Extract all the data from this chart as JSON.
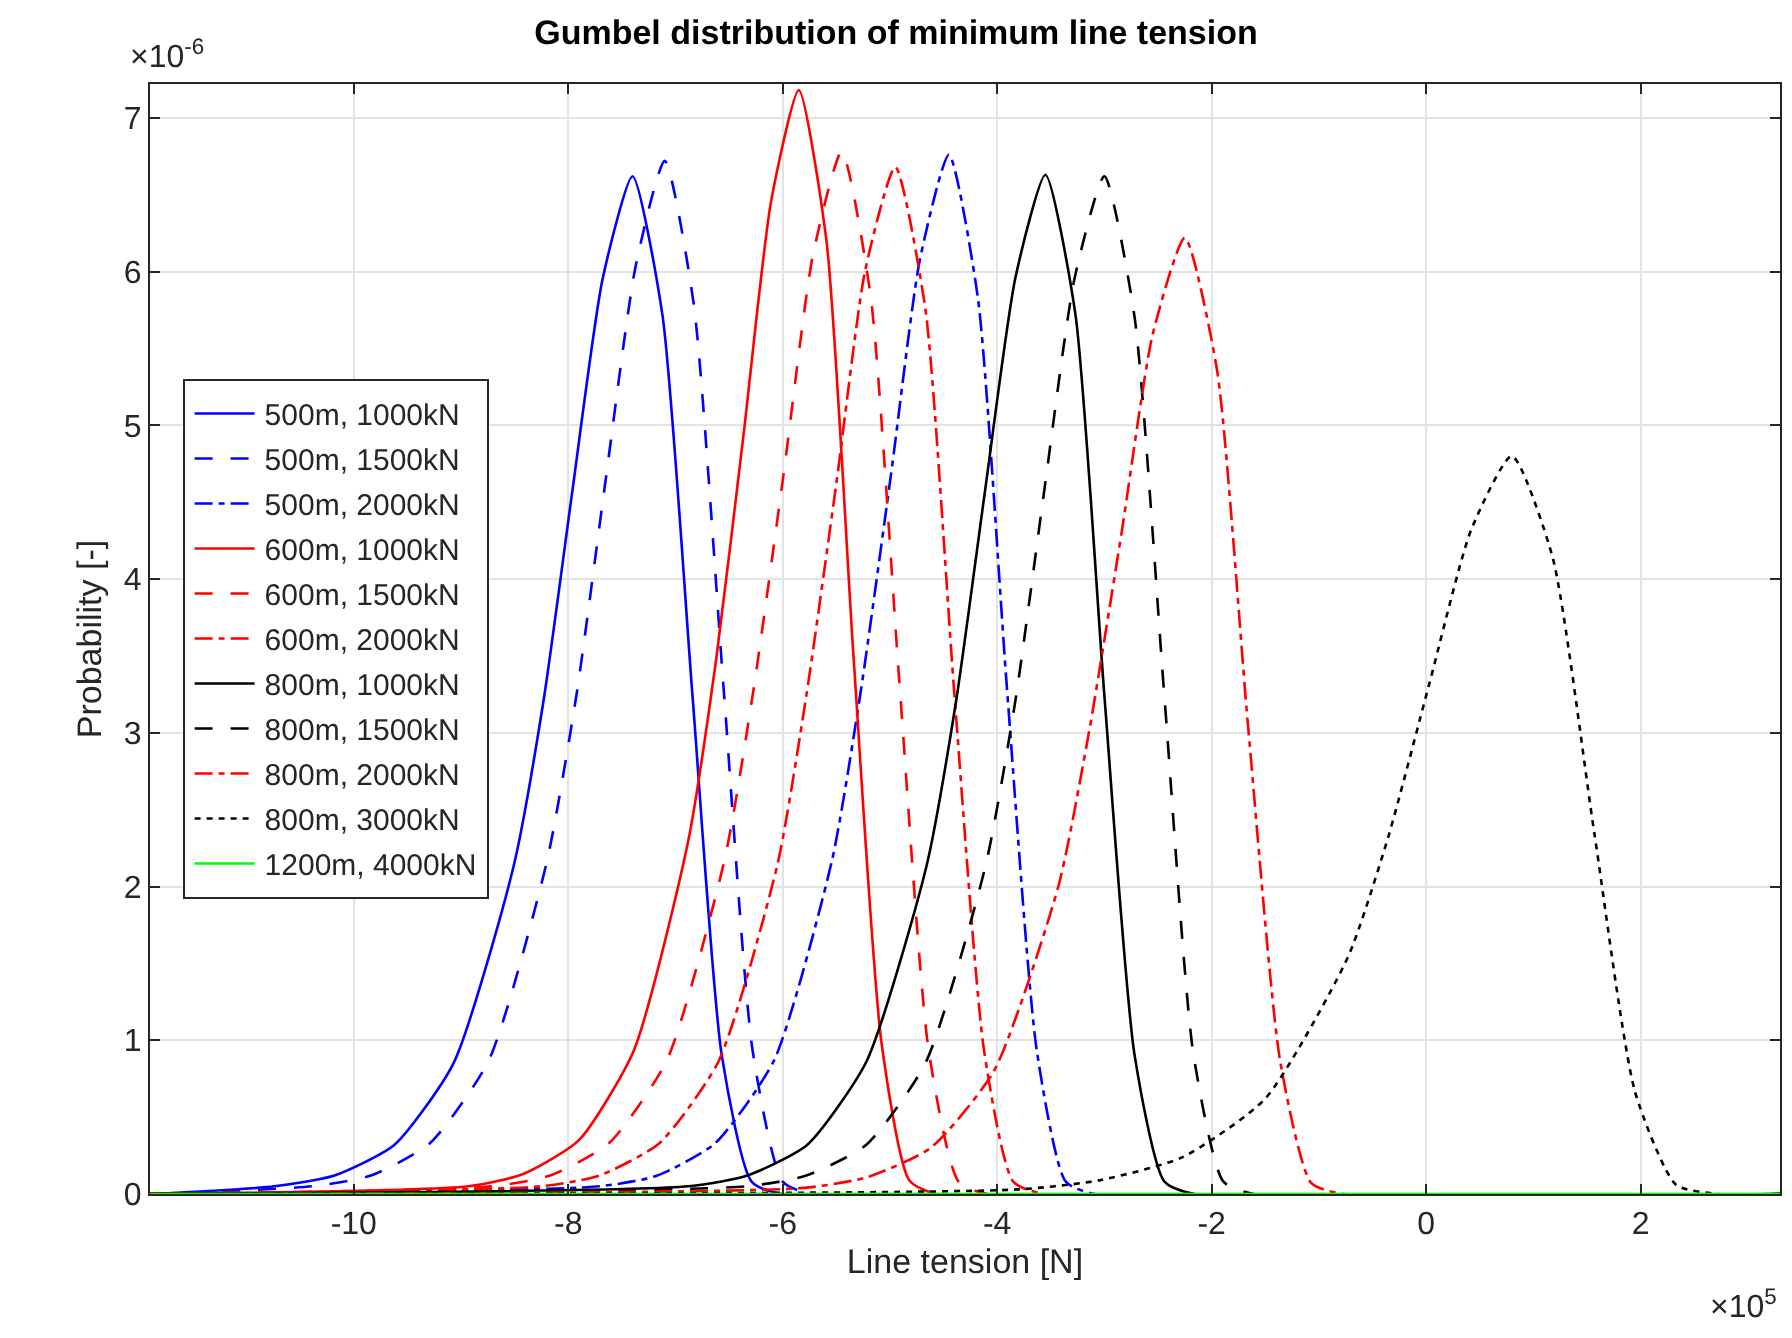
{
  "chart_data": {
    "type": "line",
    "title": "Gumbel distribution of minimum line tension",
    "xlabel": "Line tension [N]",
    "ylabel": "Probability [-]",
    "annotations": [
      "×10$^{-6}$",
      "×10$^{5}$"
    ],
    "xlim": [
      -11.9,
      3.3
    ],
    "xticks": [
      -10,
      -8,
      -6,
      -4,
      -2,
      0,
      2
    ],
    "ylim": [
      0,
      7.22
    ],
    "yticks": [
      0,
      1,
      2,
      3,
      4,
      5,
      6,
      7
    ],
    "grid": true,
    "legend": "left",
    "series": [
      {
        "name": "500m, 1000kN",
        "color": "#0000ff",
        "line_style": "solid",
        "x": [
          -11.9,
          -10.74,
          -10.18,
          -9.62,
          -9.07,
          -8.51,
          -8.23,
          -7.96,
          -7.68,
          -7.4,
          -7.12,
          -6.84,
          -6.57,
          -6.29,
          -6.01,
          3.3
        ],
        "values": [
          0,
          0.05,
          0.12,
          0.32,
          0.85,
          2.13,
          3.21,
          4.58,
          5.95,
          6.62,
          5.71,
          3.23,
          0.91,
          0.08,
          0,
          0
        ]
      },
      {
        "name": "500m, 1500kN",
        "color": "#0000ff",
        "line_style": "dashed",
        "x": [
          -11.9,
          -10.39,
          -9.84,
          -9.29,
          -8.74,
          -8.2,
          -7.92,
          -7.65,
          -7.37,
          -7.1,
          -6.83,
          -6.55,
          -6.28,
          -6.0,
          -5.73,
          3.3
        ],
        "values": [
          0,
          0.05,
          0.12,
          0.33,
          0.87,
          2.16,
          3.26,
          4.65,
          6.04,
          6.72,
          5.79,
          3.28,
          0.93,
          0.08,
          0,
          0
        ]
      },
      {
        "name": "500m, 2000kN",
        "color": "#0000ff",
        "line_style": "dashdot",
        "x": [
          -11.9,
          -7.71,
          -7.17,
          -6.63,
          -6.08,
          -5.54,
          -5.27,
          -4.99,
          -4.72,
          -4.45,
          -4.18,
          -3.91,
          -3.63,
          -3.36,
          -3.09,
          3.3
        ],
        "values": [
          0,
          0.05,
          0.12,
          0.33,
          0.87,
          2.17,
          3.28,
          4.68,
          6.08,
          6.76,
          5.83,
          3.3,
          0.93,
          0.08,
          0,
          0
        ]
      },
      {
        "name": "600m, 1000kN",
        "color": "#ff0000",
        "line_style": "solid",
        "x": [
          -11.9,
          -8.93,
          -8.42,
          -7.9,
          -7.39,
          -6.88,
          -6.62,
          -6.36,
          -6.11,
          -5.85,
          -5.59,
          -5.34,
          -5.08,
          -4.82,
          -4.57,
          3.3
        ],
        "values": [
          0,
          0.05,
          0.13,
          0.35,
          0.93,
          2.3,
          3.48,
          4.97,
          6.45,
          7.18,
          6.19,
          3.5,
          0.99,
          0.09,
          0,
          0
        ]
      },
      {
        "name": "600m, 1500kN",
        "color": "#ff0000",
        "line_style": "dashed",
        "x": [
          -11.9,
          -8.71,
          -8.17,
          -7.62,
          -7.08,
          -6.54,
          -6.27,
          -5.99,
          -5.72,
          -5.45,
          -5.18,
          -4.91,
          -4.64,
          -4.36,
          -4.09,
          3.3
        ],
        "values": [
          0,
          0.05,
          0.12,
          0.33,
          0.87,
          2.18,
          3.29,
          4.69,
          6.1,
          6.78,
          5.84,
          3.31,
          0.94,
          0.08,
          0,
          0
        ]
      },
      {
        "name": "600m, 2000kN",
        "color": "#ff0000",
        "line_style": "dashdot",
        "x": [
          -11.9,
          -8.26,
          -7.71,
          -7.15,
          -6.6,
          -6.05,
          -5.78,
          -5.5,
          -5.23,
          -4.95,
          -4.67,
          -4.4,
          -4.12,
          -3.85,
          -3.57,
          3.3
        ],
        "values": [
          0,
          0.05,
          0.12,
          0.33,
          0.86,
          2.14,
          3.24,
          4.62,
          6.01,
          6.68,
          5.76,
          3.26,
          0.92,
          0.08,
          0,
          0
        ]
      },
      {
        "name": "800m, 1000kN",
        "color": "#000000",
        "line_style": "solid",
        "x": [
          -11.9,
          -6.88,
          -6.33,
          -5.77,
          -5.22,
          -4.66,
          -4.38,
          -4.11,
          -3.83,
          -3.55,
          -3.27,
          -3.0,
          -2.72,
          -2.44,
          -2.16,
          3.3
        ],
        "values": [
          0,
          0.05,
          0.12,
          0.32,
          0.86,
          2.13,
          3.22,
          4.59,
          5.96,
          6.63,
          5.72,
          3.24,
          0.91,
          0.08,
          0,
          0
        ]
      },
      {
        "name": "800m, 1500kN",
        "color": "#000000",
        "line_style": "dashed",
        "x": [
          -11.9,
          -6.34,
          -5.78,
          -5.22,
          -4.67,
          -4.11,
          -3.83,
          -3.56,
          -3.28,
          -3.0,
          -2.72,
          -2.44,
          -2.17,
          -1.89,
          -1.61,
          3.3
        ],
        "values": [
          0,
          0.05,
          0.12,
          0.32,
          0.85,
          2.13,
          3.21,
          4.58,
          5.95,
          6.62,
          5.71,
          3.23,
          0.91,
          0.08,
          0,
          0
        ]
      },
      {
        "name": "800m, 2000kN",
        "color": "#ff0000",
        "line_style": "dashdot",
        "x": [
          -11.9,
          -5.8,
          -5.21,
          -4.62,
          -4.03,
          -3.43,
          -3.14,
          -2.84,
          -2.55,
          -2.25,
          -1.95,
          -1.66,
          -1.36,
          -1.07,
          -0.77,
          3.3
        ],
        "values": [
          0,
          0.04,
          0.11,
          0.3,
          0.8,
          2.0,
          3.02,
          4.3,
          5.59,
          6.22,
          5.36,
          3.04,
          0.86,
          0.07,
          0,
          0
        ]
      },
      {
        "name": "800m, 3000kN",
        "color": "#000000",
        "line_style": "dotted",
        "x": [
          -11.9,
          -3.8,
          -3.04,
          -2.27,
          -1.5,
          -0.73,
          -0.35,
          0.03,
          0.42,
          0.8,
          1.18,
          1.57,
          1.95,
          2.33,
          2.72,
          3.3
        ],
        "values": [
          0,
          0.03,
          0.09,
          0.24,
          0.62,
          1.54,
          2.33,
          3.32,
          4.32,
          4.8,
          4.14,
          2.34,
          0.66,
          0.06,
          0,
          0
        ]
      },
      {
        "name": "1200m, 4000kN",
        "color": "#00ff00",
        "line_style": "solid",
        "x": [
          -11.9,
          3.3
        ],
        "values": [
          0,
          0
        ]
      }
    ]
  }
}
